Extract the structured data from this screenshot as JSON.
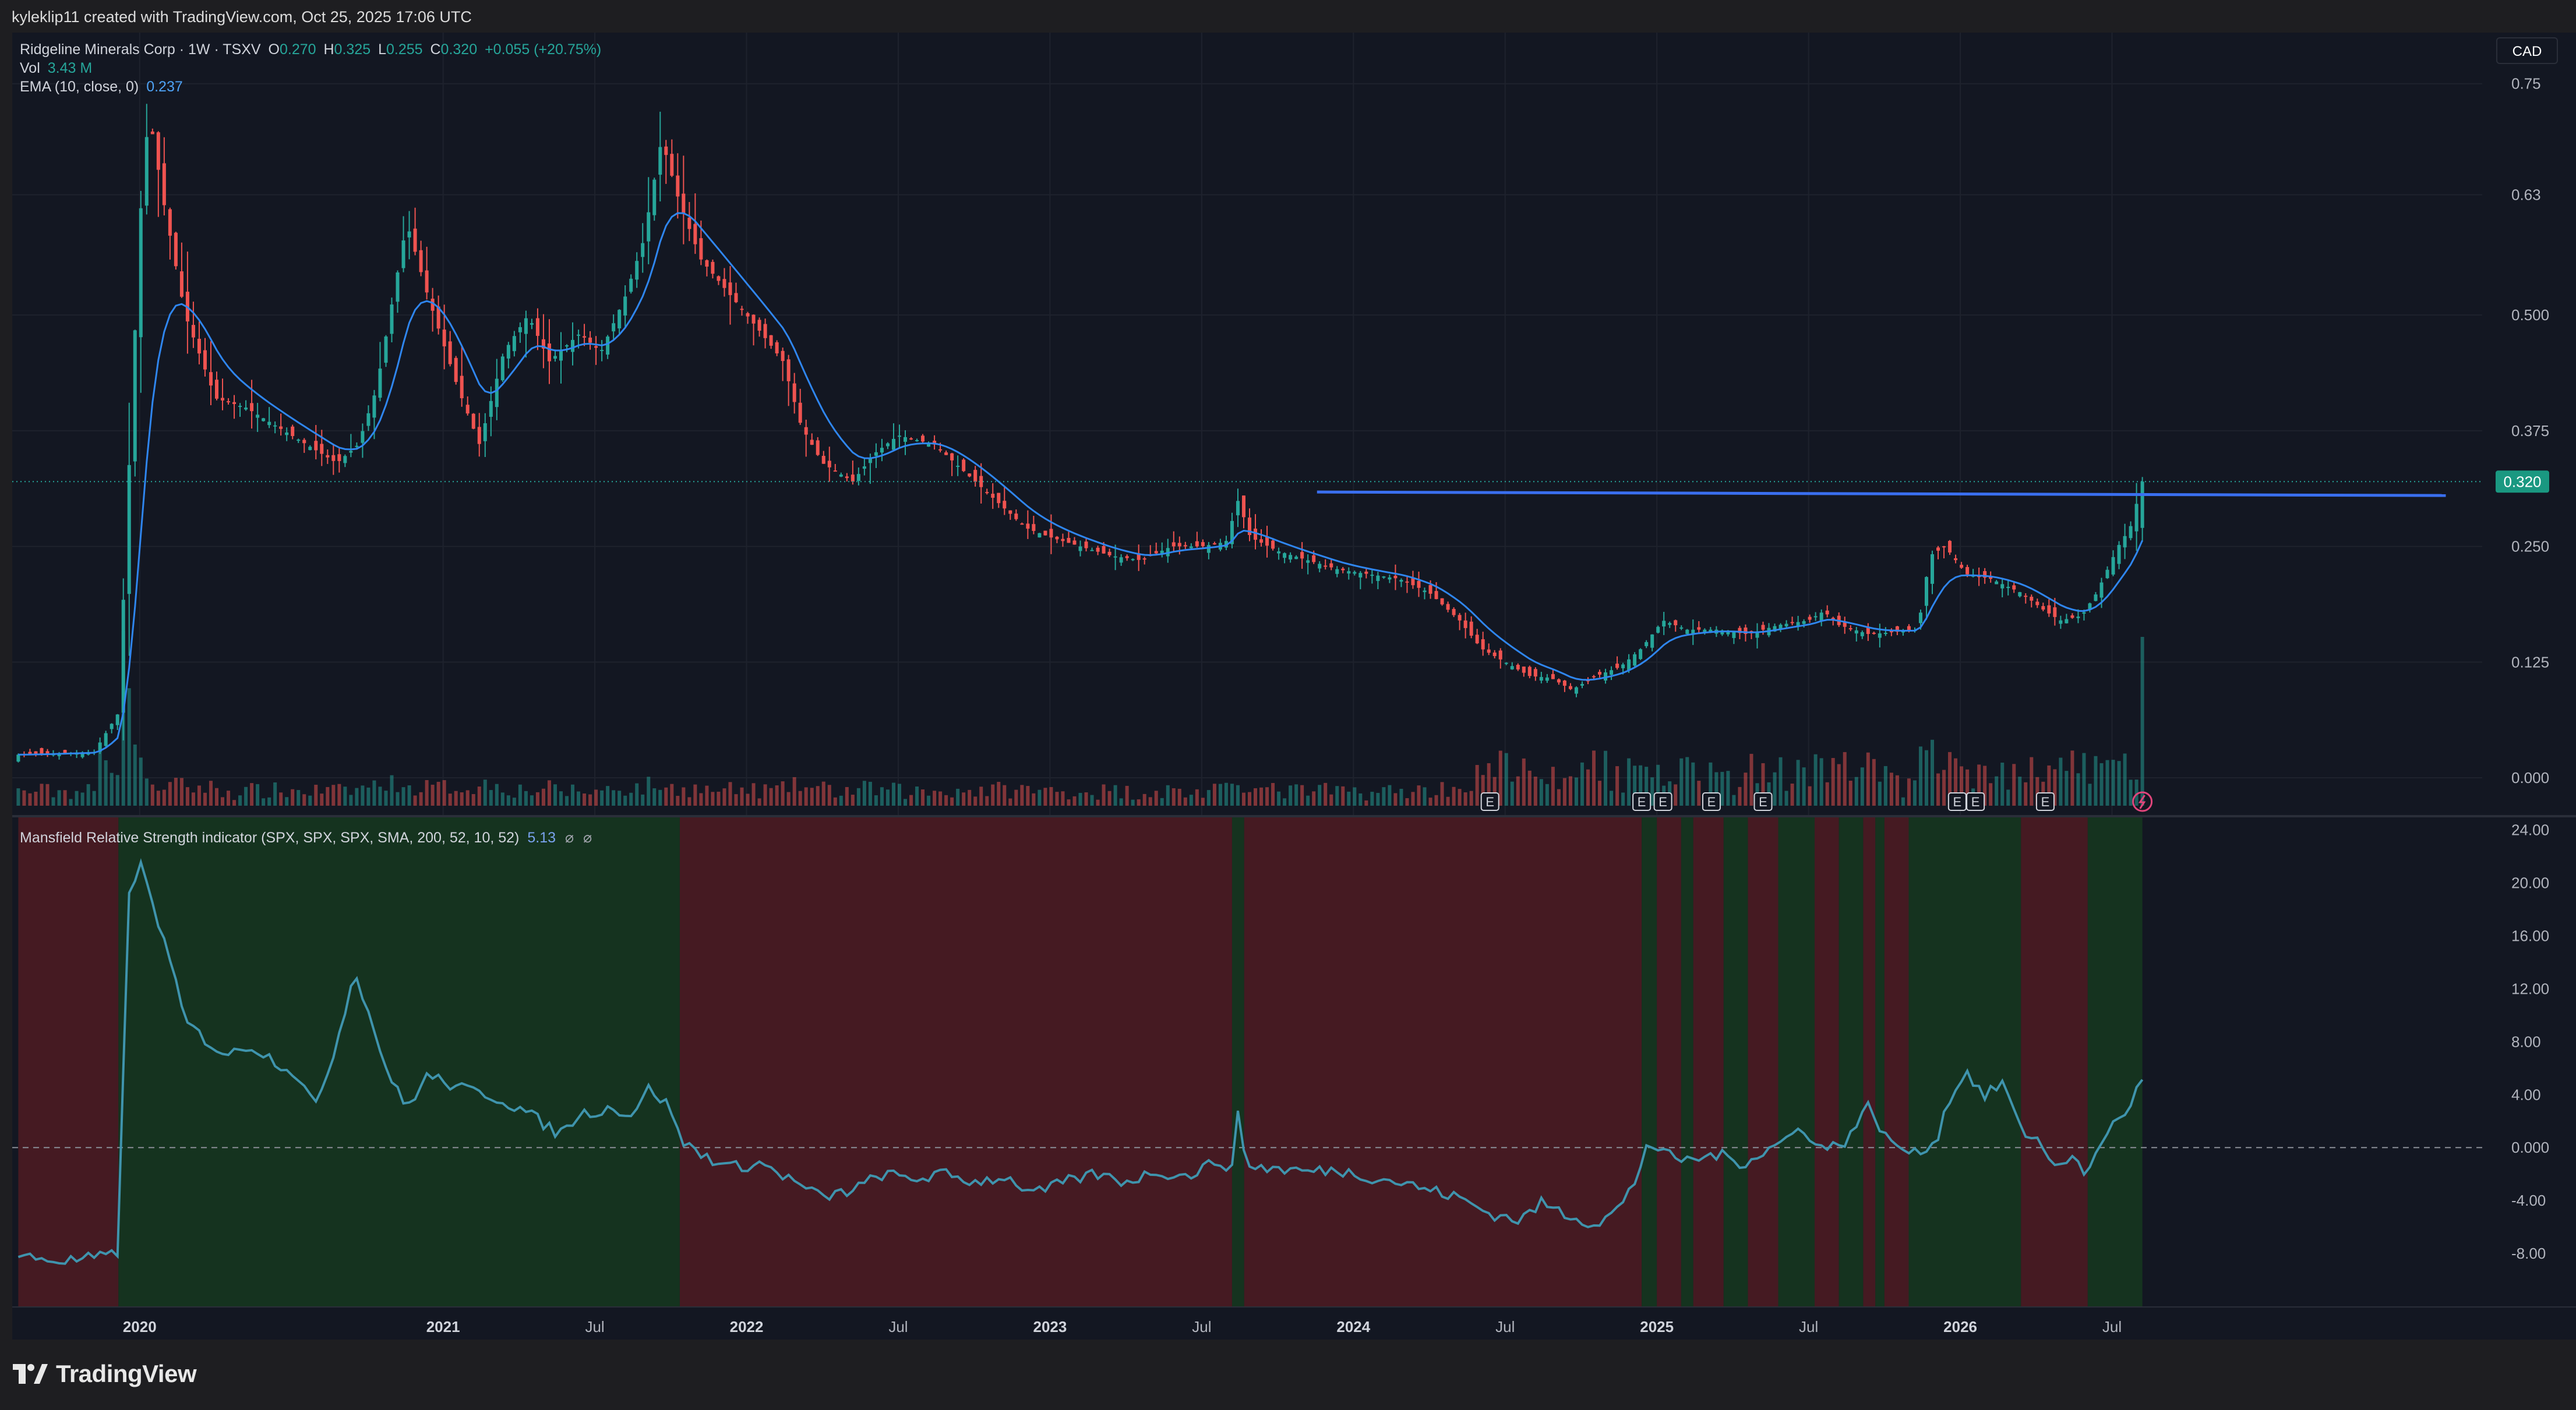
{
  "header": {
    "attribution": "kyleklip11 created with TradingView.com, Oct 25, 2025 17:06 UTC"
  },
  "legend": {
    "symbol": "Ridgeline Minerals Corp · 1W · TSXV",
    "o_label": "O",
    "o_value": "0.270",
    "h_label": "H",
    "h_value": "0.325",
    "l_label": "L",
    "l_value": "0.255",
    "c_label": "C",
    "c_value": "0.320",
    "change": "+0.055 (+20.75%)",
    "vol_label": "Vol",
    "vol_value": "3.43 M",
    "ema_label": "EMA (10, close, 0)",
    "ema_value": "0.237",
    "indicator_label": "Mansfield Relative Strength indicator (SPX, SPX, SPX, SMA, 200, 52, 10, 52)",
    "indicator_value": "5.13",
    "indicator_na_1": "⌀",
    "indicator_na_2": "⌀"
  },
  "currency_button": "CAD",
  "brand": "TradingView",
  "colors": {
    "background": "#131722",
    "up": "#26a69a",
    "down": "#ef5350",
    "ema": "#2f86f0",
    "resistance": "#3a6ff0",
    "rs_line": "#3f94ad",
    "rs_bg_green": "#15331f",
    "rs_bg_red": "#451a22",
    "last_price_tag": "#1a9881"
  },
  "chart_data": [
    {
      "type": "candlestick",
      "title": "Ridgeline Minerals Corp · 1W · TSXV",
      "timeframe": "1W",
      "y_axis_ticks": [
        "0.75",
        "0.63",
        "0.500",
        "0.375",
        "0.250",
        "0.125",
        "0.000"
      ],
      "ylim": [
        0,
        0.78
      ],
      "x_axis_ticks": [
        "2020",
        "2021",
        "Jul",
        "2022",
        "Jul",
        "2023",
        "Jul",
        "2024",
        "Jul",
        "2025",
        "Jul",
        "2026",
        "Jul"
      ],
      "last_price_label": "0.320",
      "last_bar": {
        "open": 0.27,
        "high": 0.325,
        "low": 0.255,
        "close": 0.32
      },
      "resistance_line_value": 0.305,
      "price_path": [
        [
          2019.6,
          0.025
        ],
        [
          2019.85,
          0.028
        ],
        [
          2019.93,
          0.07
        ],
        [
          2020.0,
          0.6
        ],
        [
          2020.03,
          0.72
        ],
        [
          2020.08,
          0.62
        ],
        [
          2020.15,
          0.5
        ],
        [
          2020.25,
          0.41
        ],
        [
          2020.35,
          0.4
        ],
        [
          2020.45,
          0.38
        ],
        [
          2020.55,
          0.36
        ],
        [
          2020.65,
          0.34
        ],
        [
          2020.72,
          0.36
        ],
        [
          2020.78,
          0.42
        ],
        [
          2020.88,
          0.6
        ],
        [
          2020.95,
          0.52
        ],
        [
          2021.05,
          0.42
        ],
        [
          2021.12,
          0.36
        ],
        [
          2021.2,
          0.46
        ],
        [
          2021.28,
          0.5
        ],
        [
          2021.35,
          0.45
        ],
        [
          2021.45,
          0.48
        ],
        [
          2021.52,
          0.46
        ],
        [
          2021.6,
          0.52
        ],
        [
          2021.66,
          0.58
        ],
        [
          2021.72,
          0.69
        ],
        [
          2021.78,
          0.62
        ],
        [
          2021.85,
          0.56
        ],
        [
          2021.95,
          0.52
        ],
        [
          2022.05,
          0.48
        ],
        [
          2022.12,
          0.45
        ],
        [
          2022.18,
          0.38
        ],
        [
          2022.25,
          0.34
        ],
        [
          2022.35,
          0.32
        ],
        [
          2022.42,
          0.35
        ],
        [
          2022.5,
          0.37
        ],
        [
          2022.62,
          0.36
        ],
        [
          2022.72,
          0.33
        ],
        [
          2022.82,
          0.3
        ],
        [
          2022.92,
          0.27
        ],
        [
          2023.0,
          0.26
        ],
        [
          2023.1,
          0.25
        ],
        [
          2023.2,
          0.24
        ],
        [
          2023.3,
          0.235
        ],
        [
          2023.4,
          0.25
        ],
        [
          2023.5,
          0.25
        ],
        [
          2023.58,
          0.255
        ],
        [
          2023.62,
          0.3
        ],
        [
          2023.66,
          0.26
        ],
        [
          2023.75,
          0.245
        ],
        [
          2023.85,
          0.235
        ],
        [
          2023.95,
          0.225
        ],
        [
          2024.05,
          0.22
        ],
        [
          2024.15,
          0.215
        ],
        [
          2024.25,
          0.2
        ],
        [
          2024.35,
          0.17
        ],
        [
          2024.42,
          0.14
        ],
        [
          2024.5,
          0.125
        ],
        [
          2024.58,
          0.11
        ],
        [
          2024.65,
          0.108
        ],
        [
          2024.72,
          0.095
        ],
        [
          2024.8,
          0.11
        ],
        [
          2024.88,
          0.12
        ],
        [
          2024.95,
          0.14
        ],
        [
          2025.02,
          0.17
        ],
        [
          2025.1,
          0.16
        ],
        [
          2025.2,
          0.16
        ],
        [
          2025.3,
          0.155
        ],
        [
          2025.4,
          0.165
        ],
        [
          2025.5,
          0.17
        ],
        [
          2025.55,
          0.18
        ],
        [
          2025.6,
          0.165
        ],
        [
          2025.7,
          0.155
        ],
        [
          2025.8,
          0.158
        ],
        [
          2025.86,
          0.16
        ],
        [
          2025.9,
          0.24
        ],
        [
          2025.95,
          0.25
        ],
        [
          2026.02,
          0.22
        ],
        [
          2026.1,
          0.215
        ],
        [
          2026.2,
          0.2
        ],
        [
          2026.28,
          0.18
        ],
        [
          2026.33,
          0.17
        ],
        [
          2026.4,
          0.175
        ],
        [
          2026.45,
          0.2
        ],
        [
          2026.52,
          0.25
        ],
        [
          2026.56,
          0.27
        ],
        [
          2026.6,
          0.32
        ]
      ],
      "ema_label": "EMA (10, close, 0) 0.237",
      "volume_label": "Vol 3.43 M",
      "earnings_markers_text": "E",
      "earnings_marker_dates": [
        2024.45,
        2024.95,
        2025.02,
        2025.18,
        2025.35,
        2025.99,
        2026.05,
        2026.28
      ]
    },
    {
      "type": "line",
      "title": "Mansfield Relative Strength indicator (SPX, SPX, SPX, SMA, 200, 52, 10, 52)",
      "last_value": 5.13,
      "y_axis_ticks": [
        "24.00",
        "20.00",
        "16.00",
        "12.00",
        "8.00",
        "4.00",
        "0.000",
        "-4.00",
        "-8.00"
      ],
      "ylim": [
        -12,
        25
      ],
      "zero_line": 0,
      "background_regimes": [
        {
          "from": 2019.6,
          "to": 2019.93,
          "state": "negative"
        },
        {
          "from": 2019.93,
          "to": 2021.78,
          "state": "positive"
        },
        {
          "from": 2021.78,
          "to": 2023.6,
          "state": "negative"
        },
        {
          "from": 2023.6,
          "to": 2023.64,
          "state": "positive"
        },
        {
          "from": 2023.64,
          "to": 2024.95,
          "state": "negative"
        },
        {
          "from": 2024.95,
          "to": 2025.0,
          "state": "positive"
        },
        {
          "from": 2025.0,
          "to": 2025.08,
          "state": "negative"
        },
        {
          "from": 2025.08,
          "to": 2025.12,
          "state": "positive"
        },
        {
          "from": 2025.12,
          "to": 2025.22,
          "state": "negative"
        },
        {
          "from": 2025.22,
          "to": 2025.3,
          "state": "positive"
        },
        {
          "from": 2025.3,
          "to": 2025.4,
          "state": "negative"
        },
        {
          "from": 2025.4,
          "to": 2025.52,
          "state": "positive"
        },
        {
          "from": 2025.52,
          "to": 2025.6,
          "state": "negative"
        },
        {
          "from": 2025.6,
          "to": 2025.68,
          "state": "positive"
        },
        {
          "from": 2025.68,
          "to": 2025.72,
          "state": "negative"
        },
        {
          "from": 2025.72,
          "to": 2025.75,
          "state": "positive"
        },
        {
          "from": 2025.75,
          "to": 2025.83,
          "state": "negative"
        },
        {
          "from": 2025.83,
          "to": 2026.2,
          "state": "positive"
        },
        {
          "from": 2026.2,
          "to": 2026.42,
          "state": "negative"
        },
        {
          "from": 2026.42,
          "to": 2026.6,
          "state": "positive"
        }
      ],
      "rs_path": [
        [
          2019.6,
          -8.2
        ],
        [
          2019.75,
          -8.6
        ],
        [
          2019.9,
          -8.2
        ],
        [
          2019.93,
          -8.0
        ],
        [
          2019.96,
          18.5
        ],
        [
          2020.0,
          21.5
        ],
        [
          2020.05,
          18.0
        ],
        [
          2020.1,
          14.0
        ],
        [
          2020.15,
          9.5
        ],
        [
          2020.25,
          7.5
        ],
        [
          2020.3,
          7.0
        ],
        [
          2020.36,
          7.8
        ],
        [
          2020.45,
          6.5
        ],
        [
          2020.52,
          5.5
        ],
        [
          2020.58,
          3.0
        ],
        [
          2020.65,
          8.0
        ],
        [
          2020.71,
          13.5
        ],
        [
          2020.77,
          9.0
        ],
        [
          2020.83,
          5.0
        ],
        [
          2020.88,
          3.0
        ],
        [
          2020.95,
          5.5
        ],
        [
          2021.05,
          4.5
        ],
        [
          2021.15,
          4.0
        ],
        [
          2021.25,
          3.0
        ],
        [
          2021.32,
          2.0
        ],
        [
          2021.38,
          1.0
        ],
        [
          2021.45,
          2.5
        ],
        [
          2021.55,
          3.0
        ],
        [
          2021.62,
          2.5
        ],
        [
          2021.68,
          4.5
        ],
        [
          2021.75,
          3.0
        ],
        [
          2021.78,
          0.6
        ],
        [
          2021.85,
          -0.5
        ],
        [
          2021.95,
          -1.5
        ],
        [
          2022.05,
          -1.2
        ],
        [
          2022.15,
          -2.5
        ],
        [
          2022.25,
          -3.8
        ],
        [
          2022.35,
          -3.2
        ],
        [
          2022.45,
          -2.0
        ],
        [
          2022.55,
          -2.4
        ],
        [
          2022.65,
          -2.0
        ],
        [
          2022.75,
          -2.6
        ],
        [
          2022.85,
          -2.2
        ],
        [
          2022.95,
          -3.5
        ],
        [
          2023.05,
          -2.6
        ],
        [
          2023.15,
          -2.0
        ],
        [
          2023.25,
          -2.6
        ],
        [
          2023.35,
          -1.8
        ],
        [
          2023.45,
          -2.2
        ],
        [
          2023.55,
          -1.0
        ],
        [
          2023.6,
          -1.5
        ],
        [
          2023.62,
          2.5
        ],
        [
          2023.65,
          -1.4
        ],
        [
          2023.75,
          -1.6
        ],
        [
          2023.85,
          -1.8
        ],
        [
          2023.95,
          -1.7
        ],
        [
          2024.05,
          -2.2
        ],
        [
          2024.15,
          -2.6
        ],
        [
          2024.25,
          -3.2
        ],
        [
          2024.35,
          -3.8
        ],
        [
          2024.45,
          -5.0
        ],
        [
          2024.55,
          -5.5
        ],
        [
          2024.62,
          -4.2
        ],
        [
          2024.72,
          -5.2
        ],
        [
          2024.8,
          -5.8
        ],
        [
          2024.88,
          -4.5
        ],
        [
          2024.93,
          -2.5
        ],
        [
          2024.97,
          0.5
        ],
        [
          2025.02,
          -0.5
        ],
        [
          2025.1,
          -1.0
        ],
        [
          2025.2,
          -0.5
        ],
        [
          2025.28,
          -1.2
        ],
        [
          2025.38,
          0.0
        ],
        [
          2025.48,
          1.5
        ],
        [
          2025.55,
          -0.2
        ],
        [
          2025.62,
          0.5
        ],
        [
          2025.7,
          3.2
        ],
        [
          2025.76,
          0.5
        ],
        [
          2025.85,
          -0.5
        ],
        [
          2025.92,
          0.5
        ],
        [
          2025.96,
          3.5
        ],
        [
          2026.02,
          5.8
        ],
        [
          2026.08,
          3.8
        ],
        [
          2026.14,
          5.0
        ],
        [
          2026.2,
          1.2
        ],
        [
          2026.25,
          0.8
        ],
        [
          2026.3,
          -1.2
        ],
        [
          2026.36,
          -0.8
        ],
        [
          2026.42,
          -2.0
        ],
        [
          2026.48,
          1.2
        ],
        [
          2026.54,
          2.5
        ],
        [
          2026.6,
          5.13
        ]
      ]
    }
  ]
}
